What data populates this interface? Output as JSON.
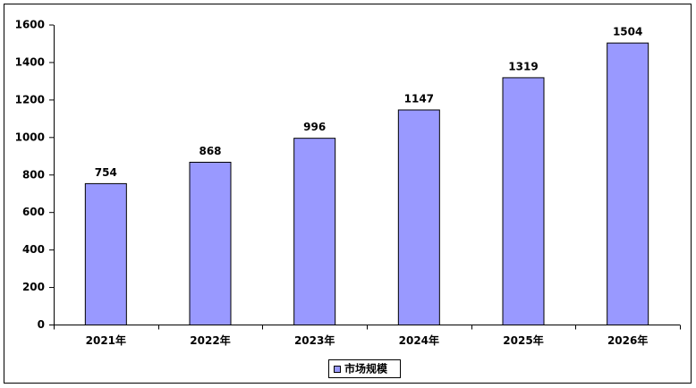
{
  "chart_data": {
    "type": "bar",
    "categories": [
      "2021年",
      "2022年",
      "2023年",
      "2024年",
      "2025年",
      "2026年"
    ],
    "series": [
      {
        "name": "市场规模",
        "color": "#9999ff",
        "values": [
          754,
          868,
          996,
          1147,
          1319,
          1504
        ]
      }
    ],
    "ylim": [
      0,
      1600
    ],
    "yticks": [
      0,
      200,
      400,
      600,
      800,
      1000,
      1200,
      1400,
      1600
    ],
    "grid": false,
    "legend": "bottom"
  }
}
